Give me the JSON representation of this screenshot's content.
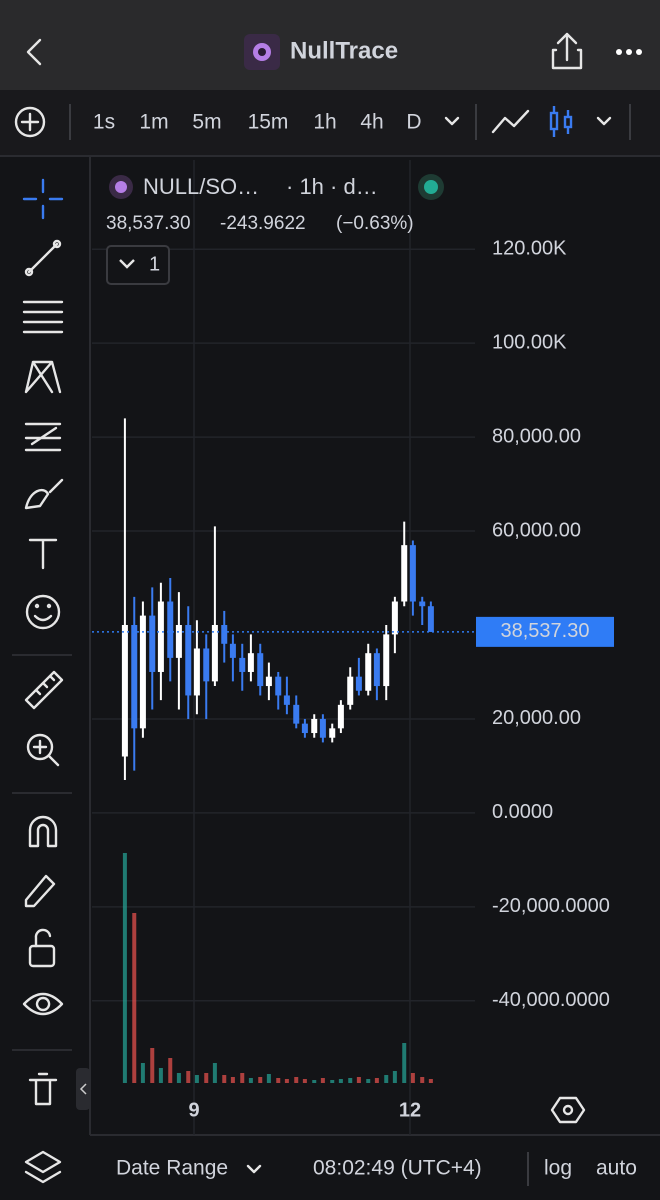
{
  "header": {
    "title": "NullTrace"
  },
  "toolbar": {
    "intervals": [
      "1s",
      "1m",
      "5m",
      "15m",
      "1h",
      "4h",
      "D"
    ],
    "active_index": 4
  },
  "legend": {
    "symbol": "NULL/SO…",
    "meta": "· 1h · d…",
    "change": "-243.9622",
    "change_pct": "(−0.63%)",
    "studies_count": "1"
  },
  "chart_data": {
    "type": "candlestick",
    "x": [
      8.04,
      8.17,
      8.29,
      8.42,
      8.54,
      8.67,
      8.79,
      8.92,
      9.04,
      9.17,
      9.29,
      9.42,
      9.54,
      9.67,
      9.79,
      9.92,
      10.04,
      10.17,
      10.29,
      10.42,
      10.54,
      10.67,
      10.79,
      10.92,
      11.04,
      11.17,
      11.29,
      11.42,
      11.54,
      11.67,
      11.79,
      11.92,
      12.04,
      12.17,
      12.29
    ],
    "open": [
      12000,
      40000,
      18000,
      42000,
      30000,
      45000,
      33000,
      40000,
      25000,
      35000,
      28000,
      40000,
      36000,
      33000,
      30000,
      34000,
      27000,
      29000,
      25000,
      23000,
      19000,
      17000,
      20000,
      16000,
      18000,
      23000,
      29000,
      26000,
      34000,
      27000,
      38000,
      45000,
      57000,
      45000,
      44000
    ],
    "high": [
      84000,
      46000,
      45000,
      48000,
      49000,
      50000,
      47000,
      44000,
      41000,
      38000,
      61000,
      43000,
      38000,
      36000,
      38000,
      36000,
      32000,
      30000,
      29000,
      25000,
      20000,
      21000,
      21000,
      19000,
      24000,
      31000,
      33000,
      36000,
      35000,
      40000,
      46000,
      62000,
      58000,
      46000,
      45000
    ],
    "low": [
      7000,
      9000,
      16000,
      22000,
      24000,
      28000,
      22000,
      20000,
      21000,
      20000,
      27000,
      32000,
      28000,
      26000,
      28000,
      25000,
      24000,
      22000,
      21000,
      18000,
      16000,
      16000,
      15000,
      15000,
      17000,
      22000,
      25000,
      25000,
      24000,
      24000,
      34000,
      44000,
      42000,
      40000,
      38537.3
    ],
    "close": [
      40000,
      18000,
      42000,
      30000,
      45000,
      33000,
      40000,
      25000,
      35000,
      28000,
      40000,
      36000,
      33000,
      30000,
      34000,
      27000,
      29000,
      25000,
      23000,
      19000,
      17000,
      20000,
      16000,
      18000,
      23000,
      29000,
      26000,
      34000,
      27000,
      38000,
      45000,
      57000,
      45000,
      44000,
      38537.3
    ],
    "volume": [
      230,
      170,
      20,
      35,
      15,
      25,
      10,
      12,
      8,
      10,
      20,
      8,
      6,
      10,
      5,
      6,
      9,
      5,
      4,
      6,
      4,
      3,
      5,
      3,
      4,
      5,
      6,
      4,
      5,
      8,
      12,
      40,
      10,
      6,
      4
    ],
    "up_color": "#ffffff",
    "down_color": "#3a7bf0",
    "volume_up_color": "#26a69a",
    "volume_down_color": "#ef5350",
    "xlim": [
      7.583,
      12.903
    ],
    "xticks": [
      9,
      12
    ],
    "ylim": [
      -59000,
      139000
    ],
    "yticks": [
      {
        "value": 120000,
        "label": "120.00K"
      },
      {
        "value": 100000,
        "label": "100.00K"
      },
      {
        "value": 80000,
        "label": "80,000.00"
      },
      {
        "value": 60000,
        "label": "60,000.00"
      },
      {
        "value": 20000,
        "label": "20,000.00"
      },
      {
        "value": 0,
        "label": "0.0000"
      },
      {
        "value": -20000,
        "label": "-20,000.0000"
      },
      {
        "value": -40000,
        "label": "-40,000.0000"
      }
    ],
    "grid": true,
    "last_price": 38537.3,
    "last_price_label": "38,537.30",
    "last_price_color": "#2f7cf6"
  },
  "footer": {
    "date_range": "Date Range",
    "time": "08:02:49 (UTC+4)",
    "log": "log",
    "auto": "auto"
  }
}
